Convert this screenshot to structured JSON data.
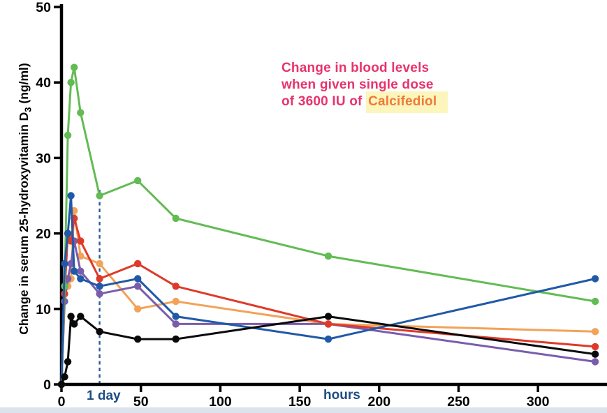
{
  "chart_data": {
    "type": "line",
    "annotation": {
      "line1": "Change in blood levels",
      "line2": "when given single dose",
      "line3_prefix": "of 3600 IU of ",
      "highlight": "Calcifediol"
    },
    "ylabel": {
      "main": "Change in serum 25-hydroxyvitamin D",
      "sub": "3",
      "unit": " (ng/ml)"
    },
    "x_unit_label": "hours",
    "day_marker_label": "1 day",
    "day_marker_x": 24,
    "x": [
      0,
      2,
      4,
      6,
      8,
      12,
      24,
      48,
      72,
      168,
      336
    ],
    "x_ticks": [
      0,
      50,
      100,
      150,
      200,
      250,
      300
    ],
    "y_ticks": [
      0,
      10,
      20,
      30,
      40,
      50
    ],
    "xlim": [
      0,
      341
    ],
    "ylim": [
      0,
      50
    ],
    "grid": false,
    "legend": "none",
    "series": [
      {
        "name": "subject-orange",
        "color": "#F2A259",
        "values": [
          0,
          12,
          13,
          14,
          23,
          17,
          16,
          10,
          11,
          8,
          7
        ]
      },
      {
        "name": "subject-purple",
        "color": "#7A5CAD",
        "values": [
          0,
          11,
          14,
          16,
          19,
          15,
          12,
          13,
          8,
          8,
          3
        ]
      },
      {
        "name": "subject-red",
        "color": "#DE3A2A",
        "values": [
          0,
          12,
          20,
          19,
          22,
          19,
          14,
          16,
          13,
          8,
          5
        ]
      },
      {
        "name": "subject-green",
        "color": "#63BB54",
        "values": [
          0,
          13,
          33,
          40,
          42,
          36,
          25,
          27,
          22,
          17,
          11
        ]
      },
      {
        "name": "subject-blue",
        "color": "#2159A8",
        "values": [
          0,
          16,
          20,
          25,
          15,
          14,
          13,
          14,
          9,
          6,
          14
        ]
      },
      {
        "name": "subject-black",
        "color": "#0A0A0A",
        "values": [
          0,
          1,
          3,
          9,
          8,
          9,
          7,
          6,
          6,
          9,
          4
        ]
      }
    ],
    "colors": {
      "axis": "#000000",
      "day_dashed_line": "#2B5C96",
      "axis_sub_label": "#1D4C85",
      "annotation_pink": "#E8336D",
      "annotation_orange": "#EF7A38",
      "highlight_background": "#FCF6BD"
    }
  }
}
